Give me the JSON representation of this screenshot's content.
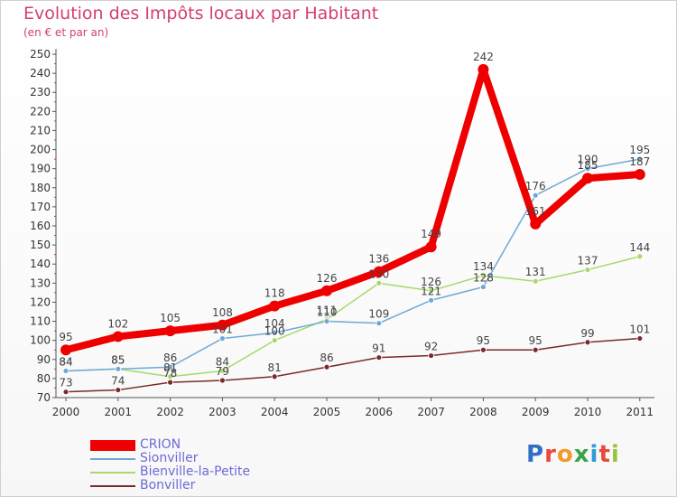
{
  "chart_data": {
    "type": "line",
    "title": "Evolution des Impôts locaux par Habitant",
    "subtitle": "(en € et par an)",
    "xlabel": "",
    "ylabel": "",
    "categories": [
      "2000",
      "2001",
      "2002",
      "2003",
      "2004",
      "2005",
      "2006",
      "2007",
      "2008",
      "2009",
      "2010",
      "2011"
    ],
    "ylim": [
      70,
      250
    ],
    "ytick_step": 10,
    "grid": false,
    "legend_position": "bottom-left",
    "series": [
      {
        "name": "CRION",
        "color": "#ee0000",
        "values": [
          95,
          102,
          105,
          108,
          118,
          126,
          136,
          149,
          242,
          161,
          185,
          187
        ]
      },
      {
        "name": "Sionviller",
        "color": "#6fa8d6",
        "values": [
          84,
          85,
          86,
          101,
          104,
          110,
          109,
          121,
          128,
          176,
          190,
          195
        ]
      },
      {
        "name": "Bienville-la-Petite",
        "color": "#a6d96a",
        "values": [
          84,
          85,
          81,
          84,
          100,
          111,
          130,
          126,
          134,
          131,
          137,
          144
        ]
      },
      {
        "name": "Bonviller",
        "color": "#7a2a2a",
        "values": [
          73,
          74,
          78,
          79,
          81,
          86,
          91,
          92,
          95,
          95,
          99,
          101
        ]
      }
    ]
  },
  "brand": {
    "letters": [
      "P",
      "r",
      "o",
      "x",
      "i",
      "t",
      "i"
    ],
    "colors": [
      "#2f6fc6",
      "#e8483a",
      "#f29a2e",
      "#3aa34a",
      "#2f9ad6",
      "#e8483a",
      "#9bc43a"
    ]
  }
}
